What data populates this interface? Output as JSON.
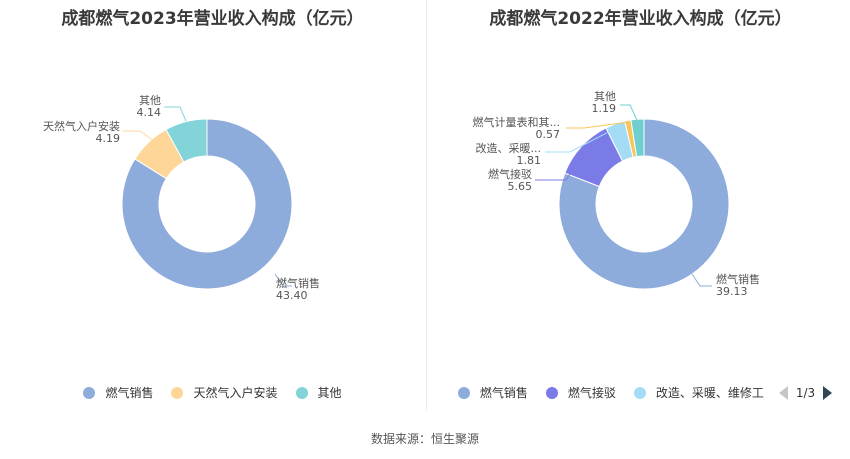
{
  "colors": [
    "#8eacdb",
    "#fdd698",
    "#82d4d9",
    "#7b7be8",
    "#a5dcf5",
    "#f6c65a",
    "#6fcfcf"
  ],
  "chart_data": [
    {
      "type": "pie",
      "title": "成都燃气2023年营业收入构成（亿元）",
      "slices": [
        {
          "name": "燃气销售",
          "label": "燃气销售",
          "value": 43.4,
          "value_text": "43.40",
          "color": "#8eacdb"
        },
        {
          "name": "天然气入户安装",
          "label": "天然气入户安装",
          "value": 4.19,
          "value_text": "4.19",
          "color": "#fdd698"
        },
        {
          "name": "其他",
          "label": "其他",
          "value": 4.14,
          "value_text": "4.14",
          "color": "#82d4d9"
        }
      ],
      "legend": [
        "燃气销售",
        "天然气入户安装",
        "其他"
      ],
      "legend_position": "bottom"
    },
    {
      "type": "pie",
      "title": "成都燃气2022年营业收入构成（亿元）",
      "slices": [
        {
          "name": "燃气销售",
          "label": "燃气销售",
          "value": 39.13,
          "value_text": "39.13",
          "color": "#8eacdb"
        },
        {
          "name": "燃气接驳",
          "label": "燃气接驳",
          "value": 5.65,
          "value_text": "5.65",
          "color": "#7b7be8"
        },
        {
          "name": "改造、采暖、维修工",
          "label": "改造、采暖...",
          "value": 1.81,
          "value_text": "1.81",
          "color": "#a5dcf5"
        },
        {
          "name": "燃气计量表和其",
          "label": "燃气计量表和其...",
          "value": 0.57,
          "value_text": "0.57",
          "color": "#f6c65a"
        },
        {
          "name": "其他",
          "label": "其他",
          "value": 1.19,
          "value_text": "1.19",
          "color": "#6fcfcf"
        }
      ],
      "legend": [
        "燃气销售",
        "燃气接驳",
        "改造、采暖、维修工"
      ],
      "legend_position": "bottom",
      "legend_page": "1/3"
    }
  ],
  "footer": {
    "source": "数据来源：恒生聚源"
  }
}
